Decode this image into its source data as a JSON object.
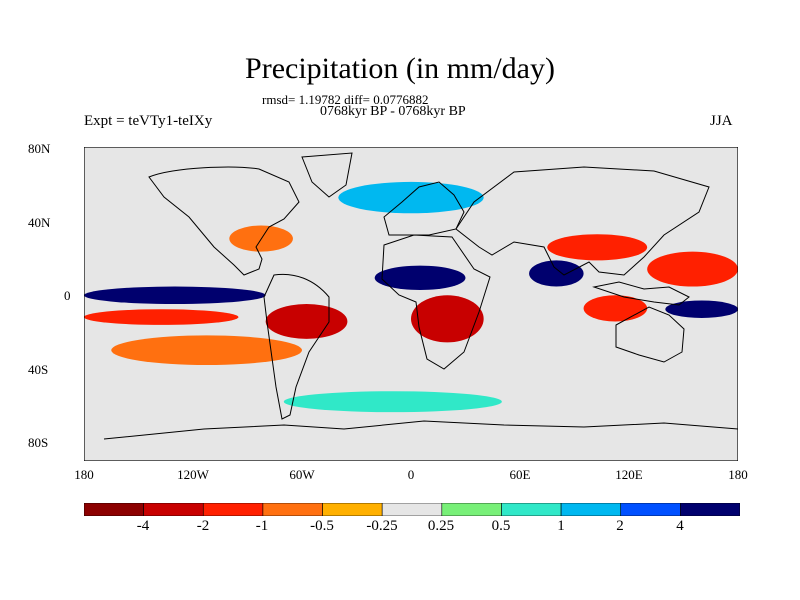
{
  "title": "Precipitation (in mm/day)",
  "stats": "rmsd= 1.19782 diff= 0.0776882",
  "period": "0768kyr BP - 0768kyr BP",
  "experiment": "Expt = teVTy1-teIXy",
  "season": "JJA",
  "lat_ticks": [
    "80N",
    "40N",
    "0",
    "40S",
    "80S"
  ],
  "lon_ticks": [
    "180",
    "120W",
    "60W",
    "0",
    "60E",
    "120E",
    "180"
  ],
  "colorbar": {
    "labels": [
      "-4",
      "-2",
      "-1",
      "-0.5",
      "-0.25",
      "0.25",
      "0.5",
      "1",
      "2",
      "4"
    ],
    "colors": [
      "#8c0000",
      "#c80000",
      "#ff2000",
      "#ff7010",
      "#ffb000",
      "#e6e6e6",
      "#78f078",
      "#30e8c8",
      "#00b8f0",
      "#0050ff",
      "#00006e"
    ]
  },
  "chart_data": {
    "type": "heatmap",
    "variable": "Precipitation (in mm/day)",
    "season": "JJA",
    "lon_range": [
      -180,
      180
    ],
    "lat_range": [
      -90,
      90
    ],
    "levels": [
      -4,
      -2,
      -1,
      -0.5,
      -0.25,
      0.25,
      0.5,
      1,
      2,
      4
    ],
    "rmsd": 1.19782,
    "diff": 0.0776882,
    "anomaly_regions": [
      {
        "lon": [
          -180,
          -80
        ],
        "lat": [
          0,
          10
        ],
        "value": 4
      },
      {
        "lon": [
          -180,
          -95
        ],
        "lat": [
          -12,
          -3
        ],
        "value": -2
      },
      {
        "lon": [
          -165,
          -60
        ],
        "lat": [
          -35,
          -18
        ],
        "value": -1
      },
      {
        "lon": [
          -80,
          -35
        ],
        "lat": [
          -20,
          0
        ],
        "value": -4
      },
      {
        "lon": [
          -100,
          -65
        ],
        "lat": [
          30,
          45
        ],
        "value": -1
      },
      {
        "lon": [
          -20,
          30
        ],
        "lat": [
          8,
          22
        ],
        "value": 4
      },
      {
        "lon": [
          0,
          40
        ],
        "lat": [
          -22,
          5
        ],
        "value": -4
      },
      {
        "lon": [
          65,
          95
        ],
        "lat": [
          10,
          25
        ],
        "value": 4
      },
      {
        "lon": [
          75,
          130
        ],
        "lat": [
          25,
          40
        ],
        "value": -2
      },
      {
        "lon": [
          130,
          180
        ],
        "lat": [
          10,
          30
        ],
        "value": -2
      },
      {
        "lon": [
          95,
          130
        ],
        "lat": [
          -10,
          5
        ],
        "value": -2
      },
      {
        "lon": [
          140,
          180
        ],
        "lat": [
          -8,
          2
        ],
        "value": 4
      },
      {
        "lon": [
          -70,
          50
        ],
        "lat": [
          -62,
          -50
        ],
        "value": 0.5
      },
      {
        "lon": [
          -40,
          40
        ],
        "lat": [
          52,
          70
        ],
        "value": 1
      }
    ]
  }
}
